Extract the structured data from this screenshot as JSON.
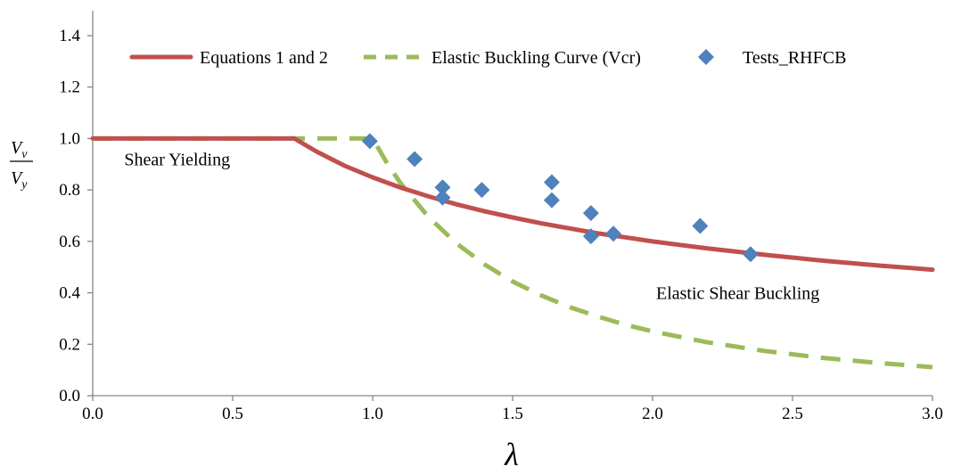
{
  "chart_data": {
    "type": "line",
    "title": "",
    "xlabel": "λ",
    "ylabel": {
      "numerator": "V",
      "numerator_sub": "v",
      "denominator": "V",
      "denominator_sub": "y"
    },
    "xlim": [
      0,
      3.0
    ],
    "ylim": [
      0,
      1.4
    ],
    "x_ticks": [
      "0.0",
      "0.5",
      "1.0",
      "1.5",
      "2.0",
      "2.5",
      "3.0"
    ],
    "y_ticks": [
      "0.0",
      "0.2",
      "0.4",
      "0.6",
      "0.8",
      "1.0",
      "1.2",
      "1.4"
    ],
    "x_tick_values": [
      0,
      0.5,
      1.0,
      1.5,
      2.0,
      2.5,
      3.0
    ],
    "y_tick_values": [
      0,
      0.2,
      0.4,
      0.6,
      0.8,
      1.0,
      1.2,
      1.4
    ],
    "grid": false,
    "legend_position": "top",
    "series": [
      {
        "name": "Equations 1 and 2",
        "kind": "line",
        "style": "solid",
        "color": "#c0504d",
        "x": [
          0.0,
          0.25,
          0.5,
          0.72,
          0.8,
          0.9,
          1.0,
          1.1,
          1.2,
          1.3,
          1.4,
          1.5,
          1.6,
          1.7,
          1.8,
          1.9,
          2.0,
          2.2,
          2.4,
          2.6,
          2.8,
          3.0
        ],
        "y": [
          1.0,
          1.0,
          1.0,
          1.0,
          0.949,
          0.894,
          0.849,
          0.809,
          0.775,
          0.744,
          0.717,
          0.693,
          0.671,
          0.651,
          0.632,
          0.616,
          0.6,
          0.572,
          0.548,
          0.526,
          0.507,
          0.49
        ]
      },
      {
        "name": "Elastic Buckling Curve (Vcr)",
        "kind": "line",
        "style": "dashed",
        "color": "#9bbb59",
        "x": [
          0.0,
          0.25,
          0.5,
          0.75,
          1.0,
          1.05,
          1.1,
          1.2,
          1.3,
          1.4,
          1.5,
          1.6,
          1.7,
          1.8,
          1.9,
          2.0,
          2.2,
          2.4,
          2.6,
          2.8,
          3.0
        ],
        "y": [
          1.0,
          1.0,
          1.0,
          1.0,
          1.0,
          0.907,
          0.826,
          0.694,
          0.592,
          0.51,
          0.444,
          0.391,
          0.346,
          0.309,
          0.277,
          0.25,
          0.207,
          0.174,
          0.148,
          0.128,
          0.111
        ]
      },
      {
        "name": "Tests_RHFCB",
        "kind": "scatter",
        "marker": "diamond",
        "color": "#4f81bd",
        "x": [
          0.99,
          1.15,
          1.25,
          1.25,
          1.39,
          1.64,
          1.64,
          1.78,
          1.78,
          1.86,
          2.17,
          2.35
        ],
        "y": [
          0.99,
          0.92,
          0.81,
          0.77,
          0.8,
          0.83,
          0.76,
          0.71,
          0.62,
          0.63,
          0.66,
          0.55
        ]
      }
    ],
    "annotations": [
      {
        "text": "Shear Yielding",
        "x": 0.1,
        "y": 0.92
      },
      {
        "text": "Elastic Shear Buckling",
        "x": 2.0,
        "y": 0.4
      }
    ]
  }
}
